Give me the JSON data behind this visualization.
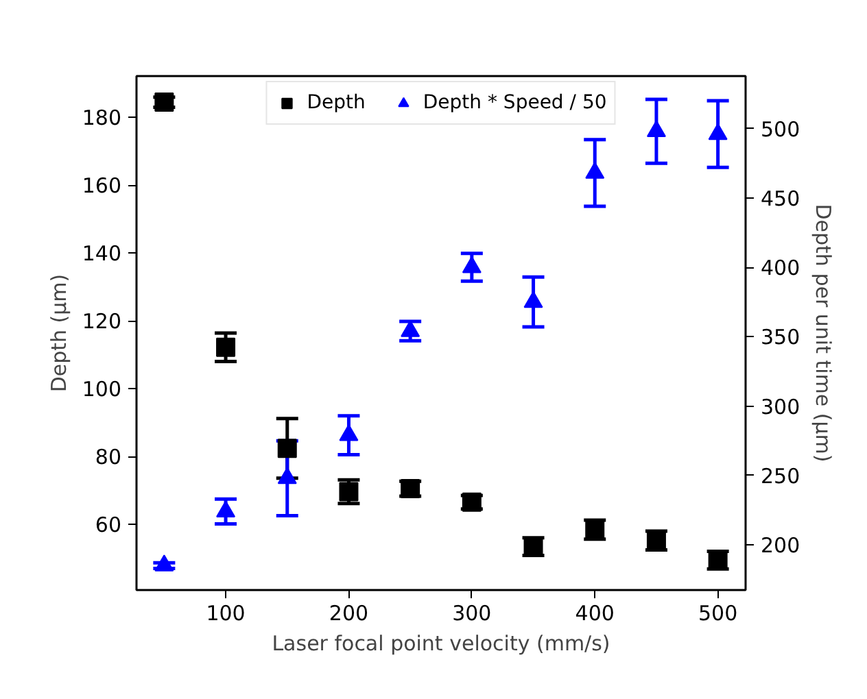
{
  "chart_data": {
    "type": "scatter",
    "xlabel": "Laser focal point velocity (mm/s)",
    "ylabel": "Depth (µm)",
    "y2label": "Depth per unit time (µm)",
    "x": [
      50,
      100,
      150,
      200,
      250,
      300,
      350,
      400,
      450,
      500
    ],
    "xlim": [
      27.5,
      522.5
    ],
    "xticks": [
      100,
      200,
      300,
      400,
      500
    ],
    "ylim": [
      40.6,
      192.2
    ],
    "yticks": [
      60,
      80,
      100,
      120,
      140,
      160,
      180
    ],
    "y2lim": [
      167.4,
      537.8
    ],
    "y2ticks": [
      200,
      250,
      300,
      350,
      400,
      450,
      500
    ],
    "grid": false,
    "legend": "top",
    "series": [
      {
        "name": "Depth",
        "color": "#000000",
        "marker": "square",
        "values": [
          184.5,
          112.2,
          82.4,
          69.6,
          70.5,
          66.5,
          53.4,
          58.4,
          55.2,
          49.4
        ],
        "errors": [
          1.5,
          4.2,
          8.8,
          3.5,
          2.2,
          2,
          2.6,
          2.8,
          2.8,
          2.6
        ]
      },
      {
        "name": "Depth * Speed / 50",
        "color": "#0000ff",
        "marker": "triangle",
        "axis": "y2",
        "values": [
          185,
          224,
          248,
          279,
          354,
          400,
          375,
          468,
          498,
          496
        ],
        "errors": [
          2,
          9,
          27,
          14,
          7,
          10,
          18,
          24,
          23,
          24
        ]
      }
    ]
  }
}
